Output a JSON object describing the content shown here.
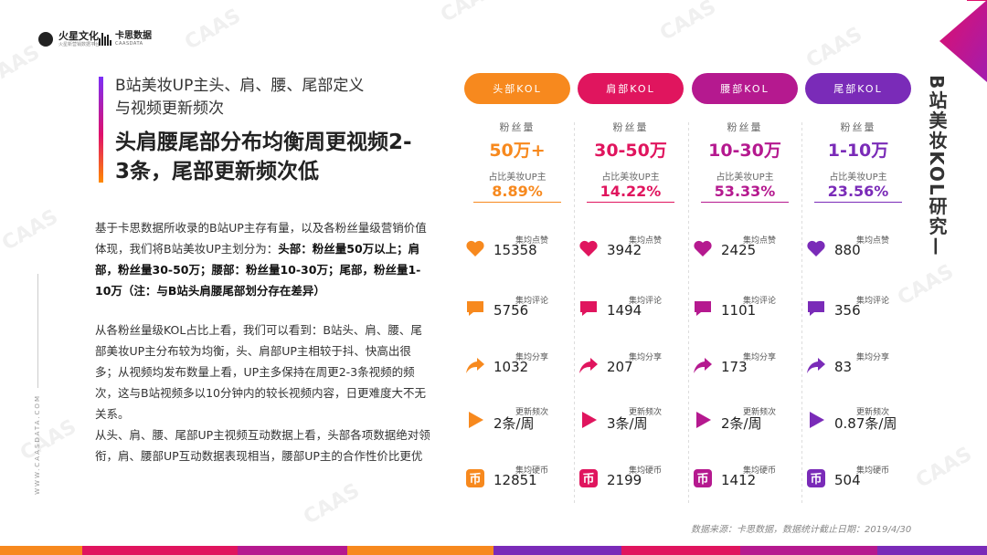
{
  "logos": {
    "fire_name": "火星文化",
    "fire_sub": "火星新营销数据平台",
    "caas_name": "卡思数据",
    "caas_sub": "CAASDATA"
  },
  "left": {
    "subtitle": "B站美妆UP主头、肩、腰、尾部定义与视频更新频次",
    "title": "头肩腰尾部分布均衡周更视频2-3条，尾部更新频次低",
    "para1_plain": "基于卡思数据所收录的B站UP主存有量，以及各粉丝量级营销价值体现，我们将B站美妆UP主划分为：",
    "para1_bold": "头部：粉丝量50万以上；肩部，粉丝量30-50万；腰部：粉丝量10-30万；尾部，粉丝量1-10万（注：与B站头肩腰尾部划分存在差异）",
    "para2_a": "从各粉丝量级KOL占比上看，我们可以看到：B站头、肩、腰、尾部美妆UP主分布较为均衡，头、肩部UP主相较于抖、快高出很多；从视频均发布数量上看，UP主多保持在周更2-3条视频的频次，这与B站视频多以10分钟内的较长视频内容，日更难度大不无关系。",
    "para2_b": "从头、肩、腰、尾部UP主视频互动数据上看，头部各项数据绝对领衔，肩、腰部UP互动数据表现相当，腰部UP主的合作性价比更优"
  },
  "side_left": "WWW.CAASDATA.COM",
  "side_right": "B站美妆KOL研究—",
  "source": "数据来源：卡思数据，数据统计截止日期：2019/4/30",
  "labels": {
    "fans": "粉丝量",
    "share": "占比美妆UP主",
    "likes": "集均点赞",
    "comments": "集均评论",
    "shares": "集均分享",
    "freq": "更新频次",
    "coins": "集均硬币"
  },
  "columns": [
    {
      "tier": "头部KOL",
      "range": "50万+",
      "share": "8.89%",
      "likes": "15358",
      "comments": "5756",
      "shares": "1032",
      "freq": "2条/周",
      "coins": "12851",
      "color": "#f7891e"
    },
    {
      "tier": "肩部KOL",
      "range": "30-50万",
      "share": "14.22%",
      "likes": "3942",
      "comments": "1494",
      "shares": "207",
      "freq": "3条/周",
      "coins": "2199",
      "color": "#e0155e"
    },
    {
      "tier": "腰部KOL",
      "range": "10-30万",
      "share": "53.33%",
      "likes": "2425",
      "comments": "1101",
      "shares": "173",
      "freq": "2条/周",
      "coins": "1412",
      "color": "#b5198f"
    },
    {
      "tier": "尾部KOL",
      "range": "1-10万",
      "share": "23.56%",
      "likes": "880",
      "comments": "356",
      "shares": "83",
      "freq": "0.87条/周",
      "coins": "504",
      "color": "#7a2bb8"
    }
  ]
}
